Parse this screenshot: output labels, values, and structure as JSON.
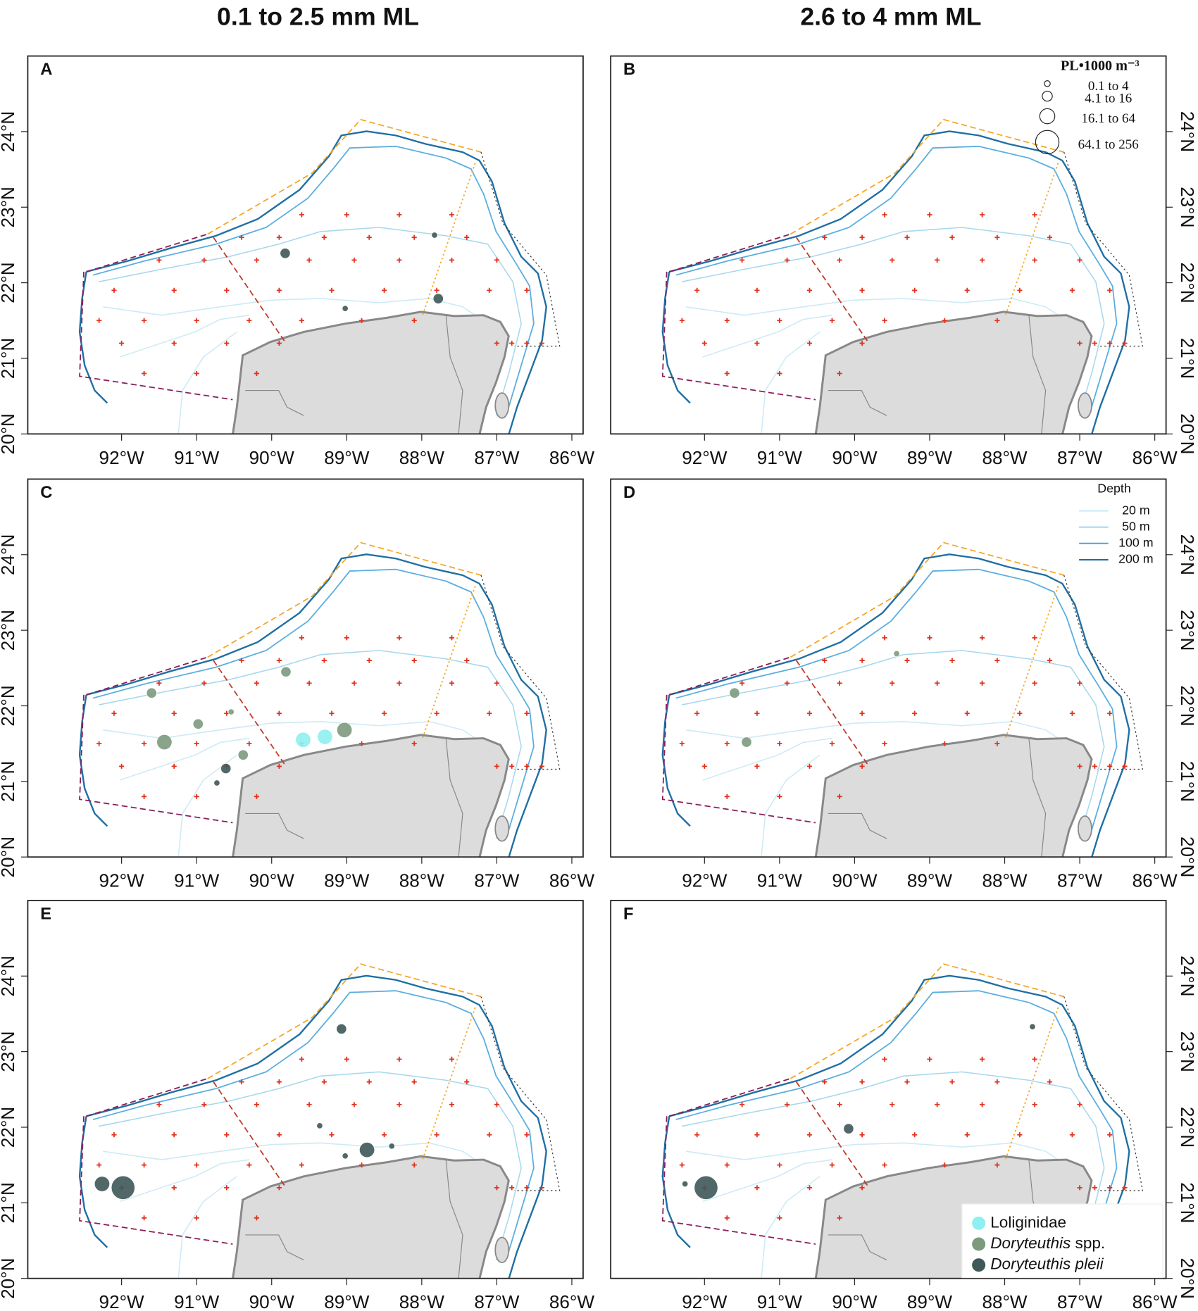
{
  "column_titles": [
    "0.1 to 2.5 mm ML",
    "2.6 to 4 mm ML"
  ],
  "map": {
    "xlim": [
      -93.25,
      -85.85
    ],
    "ylim": [
      20,
      25
    ],
    "xticks": [
      {
        "value": -92,
        "label": "92°W"
      },
      {
        "value": -91,
        "label": "91°W"
      },
      {
        "value": -90,
        "label": "90°W"
      },
      {
        "value": -89,
        "label": "89°W"
      },
      {
        "value": -88,
        "label": "88°W"
      },
      {
        "value": -87,
        "label": "87°W"
      },
      {
        "value": -86,
        "label": "86°W"
      }
    ],
    "yticks": [
      {
        "value": 20,
        "label": "20°N"
      },
      {
        "value": 21,
        "label": "21°N"
      },
      {
        "value": 22,
        "label": "22°N"
      },
      {
        "value": 23,
        "label": "23°N"
      },
      {
        "value": 24,
        "label": "24°N"
      }
    ]
  },
  "size_legend": {
    "title": "PL•1000 m⁻³",
    "classes": [
      "0.1 to 4",
      "4.1 to 16",
      "16.1 to 64",
      "64.1 to 256"
    ]
  },
  "depth_legend": {
    "title": "Depth",
    "items": [
      {
        "name": "20 m",
        "color": "#cdeaf5"
      },
      {
        "name": "50 m",
        "color": "#a6d8ee"
      },
      {
        "name": "100 m",
        "color": "#5aaee0"
      },
      {
        "name": "200 m",
        "color": "#1f6fa3"
      }
    ]
  },
  "taxa": [
    {
      "name": "Loliginidae",
      "italic_part": "",
      "color": "#8ef0f0"
    },
    {
      "name": "Doryteuthis spp.",
      "italic_part": "Doryteuthis",
      "color": "#7c9a7e"
    },
    {
      "name": "Doryteuthis pleii",
      "italic_part": "Doryteuthis pleii",
      "color": "#3f5858"
    }
  ],
  "stations": {
    "lon": [
      -89.6,
      -89.0,
      -88.3,
      -87.6,
      -90.4,
      -89.9,
      -89.3,
      -88.7,
      -88.1,
      -87.4,
      -91.5,
      -90.9,
      -90.2,
      -89.5,
      -88.9,
      -88.3,
      -87.6,
      -87.0,
      -92.1,
      -91.3,
      -90.6,
      -89.9,
      -89.2,
      -88.5,
      -87.8,
      -87.1,
      -86.6,
      -92.3,
      -91.7,
      -91.0,
      -90.3,
      -89.6,
      -88.8,
      -88.1,
      -92.0,
      -91.3,
      -90.6,
      -89.9,
      -87.0,
      -86.8,
      -86.6,
      -86.4,
      -91.7,
      -91.0,
      -90.2
    ],
    "lat": [
      22.9,
      22.9,
      22.9,
      22.9,
      22.6,
      22.6,
      22.6,
      22.6,
      22.6,
      22.6,
      22.3,
      22.3,
      22.3,
      22.3,
      22.3,
      22.3,
      22.3,
      22.3,
      21.9,
      21.9,
      21.9,
      21.9,
      21.9,
      21.9,
      21.9,
      21.9,
      21.9,
      21.5,
      21.5,
      21.5,
      21.5,
      21.5,
      21.5,
      21.5,
      21.2,
      21.2,
      21.2,
      21.2,
      21.2,
      21.2,
      21.2,
      21.2,
      20.8,
      20.8,
      20.8
    ]
  },
  "panels": [
    {
      "label": "A",
      "bubbles": [
        {
          "lon": -89.82,
          "lat": 22.39,
          "taxon": "Doryteuthis pleii",
          "class": "4.1 to 16"
        },
        {
          "lon": -87.83,
          "lat": 22.63,
          "taxon": "Doryteuthis pleii",
          "class": "0.1 to 4"
        },
        {
          "lon": -87.78,
          "lat": 21.79,
          "taxon": "Doryteuthis pleii",
          "class": "4.1 to 16"
        },
        {
          "lon": -89.02,
          "lat": 21.66,
          "taxon": "Doryteuthis pleii",
          "class": "0.1 to 4"
        }
      ]
    },
    {
      "label": "B",
      "bubbles": []
    },
    {
      "label": "C",
      "bubbles": [
        {
          "lon": -91.6,
          "lat": 22.17,
          "taxon": "Doryteuthis spp.",
          "class": "4.1 to 16"
        },
        {
          "lon": -89.81,
          "lat": 22.45,
          "taxon": "Doryteuthis spp.",
          "class": "4.1 to 16"
        },
        {
          "lon": -91.43,
          "lat": 21.52,
          "taxon": "Doryteuthis spp.",
          "class": "16.1 to 64"
        },
        {
          "lon": -90.98,
          "lat": 21.76,
          "taxon": "Doryteuthis spp.",
          "class": "4.1 to 16"
        },
        {
          "lon": -90.54,
          "lat": 21.92,
          "taxon": "Doryteuthis spp.",
          "class": "0.1 to 4"
        },
        {
          "lon": -90.38,
          "lat": 21.35,
          "taxon": "Doryteuthis spp.",
          "class": "4.1 to 16"
        },
        {
          "lon": -90.61,
          "lat": 21.17,
          "taxon": "Doryteuthis pleii",
          "class": "4.1 to 16"
        },
        {
          "lon": -90.73,
          "lat": 20.98,
          "taxon": "Doryteuthis pleii",
          "class": "0.1 to 4"
        },
        {
          "lon": -89.58,
          "lat": 21.55,
          "taxon": "Loliginidae",
          "class": "16.1 to 64"
        },
        {
          "lon": -89.29,
          "lat": 21.59,
          "taxon": "Loliginidae",
          "class": "16.1 to 64"
        },
        {
          "lon": -89.03,
          "lat": 21.68,
          "taxon": "Doryteuthis spp.",
          "class": "16.1 to 64"
        }
      ]
    },
    {
      "label": "D",
      "bubbles": [
        {
          "lon": -91.6,
          "lat": 22.17,
          "taxon": "Doryteuthis spp.",
          "class": "4.1 to 16"
        },
        {
          "lon": -89.44,
          "lat": 22.69,
          "taxon": "Doryteuthis spp.",
          "class": "0.1 to 4"
        },
        {
          "lon": -91.44,
          "lat": 21.52,
          "taxon": "Doryteuthis spp.",
          "class": "4.1 to 16"
        }
      ]
    },
    {
      "label": "E",
      "bubbles": [
        {
          "lon": -89.07,
          "lat": 23.3,
          "taxon": "Doryteuthis pleii",
          "class": "4.1 to 16"
        },
        {
          "lon": -89.36,
          "lat": 22.02,
          "taxon": "Doryteuthis pleii",
          "class": "0.1 to 4"
        },
        {
          "lon": -89.02,
          "lat": 21.62,
          "taxon": "Doryteuthis pleii",
          "class": "0.1 to 4"
        },
        {
          "lon": -88.4,
          "lat": 21.75,
          "taxon": "Doryteuthis pleii",
          "class": "0.1 to 4"
        },
        {
          "lon": -88.73,
          "lat": 21.7,
          "taxon": "Doryteuthis pleii",
          "class": "16.1 to 64"
        },
        {
          "lon": -92.26,
          "lat": 21.25,
          "taxon": "Doryteuthis pleii",
          "class": "16.1 to 64"
        },
        {
          "lon": -91.98,
          "lat": 21.2,
          "taxon": "Doryteuthis pleii",
          "class": "64.1 to 256"
        }
      ]
    },
    {
      "label": "F",
      "bubbles": [
        {
          "lon": -87.63,
          "lat": 23.33,
          "taxon": "Doryteuthis pleii",
          "class": "0.1 to 4"
        },
        {
          "lon": -90.08,
          "lat": 21.98,
          "taxon": "Doryteuthis pleii",
          "class": "4.1 to 16"
        },
        {
          "lon": -92.26,
          "lat": 21.25,
          "taxon": "Doryteuthis pleii",
          "class": "0.1 to 4"
        },
        {
          "lon": -91.98,
          "lat": 21.2,
          "taxon": "Doryteuthis pleii",
          "class": "64.1 to 256"
        }
      ]
    }
  ]
}
